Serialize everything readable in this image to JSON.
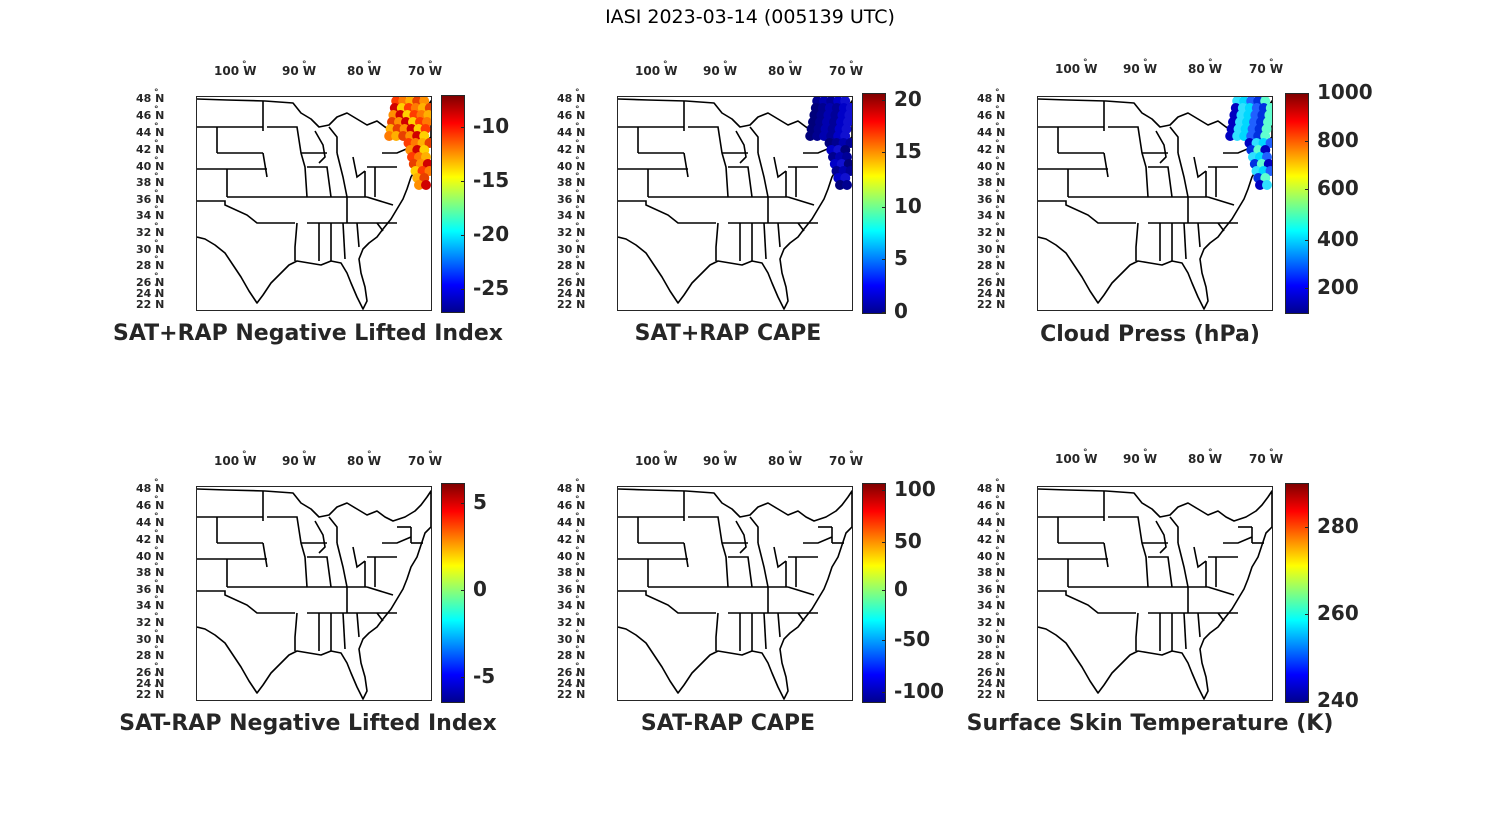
{
  "title": "IASI 2023-03-14 (005139 UTC)",
  "lon_labels": [
    "100  W",
    "90  W",
    "80  W",
    "70  W"
  ],
  "lat_labels": [
    "48  N",
    "46  N",
    "44  N",
    "42  N",
    "40  N",
    "38  N",
    "36  N",
    "34  N",
    "32  N",
    "30  N",
    "28  N",
    "26  N",
    "24  N",
    "22  N"
  ],
  "panels": [
    {
      "title": "SAT+RAP Negative Lifted Index",
      "colorbar": {
        "ticks": [
          "-10",
          "-15",
          "-20",
          "-25"
        ],
        "tick_fracs": [
          0.85,
          0.6,
          0.35,
          0.1
        ]
      },
      "overlay": "warm"
    },
    {
      "title": "SAT+RAP CAPE",
      "colorbar": {
        "ticks": [
          "20",
          "15",
          "10",
          "5",
          "0"
        ],
        "tick_fracs": [
          0.97,
          0.73,
          0.48,
          0.24,
          0.0
        ]
      },
      "overlay": "darkblue"
    },
    {
      "title": "Cloud Press (hPa)",
      "colorbar": {
        "ticks": [
          "1000",
          "800",
          "600",
          "400",
          "200"
        ],
        "tick_fracs": [
          1.0,
          0.78,
          0.56,
          0.33,
          0.11
        ]
      },
      "overlay": "cyanblue"
    },
    {
      "title": "SAT-RAP Negative Lifted Index",
      "colorbar": {
        "ticks": [
          "5",
          "0",
          "-5"
        ],
        "tick_fracs": [
          0.91,
          0.51,
          0.11
        ]
      },
      "overlay": "none"
    },
    {
      "title": "SAT-RAP CAPE",
      "colorbar": {
        "ticks": [
          "100",
          "50",
          "0",
          "-50",
          "-100"
        ],
        "tick_fracs": [
          0.97,
          0.73,
          0.51,
          0.28,
          0.04
        ]
      },
      "overlay": "none"
    },
    {
      "title": "Surface Skin Temperature (K)",
      "colorbar": {
        "ticks": [
          "280",
          "260",
          "240"
        ],
        "tick_fracs": [
          0.8,
          0.4,
          0.0
        ]
      },
      "overlay": "none"
    }
  ]
}
